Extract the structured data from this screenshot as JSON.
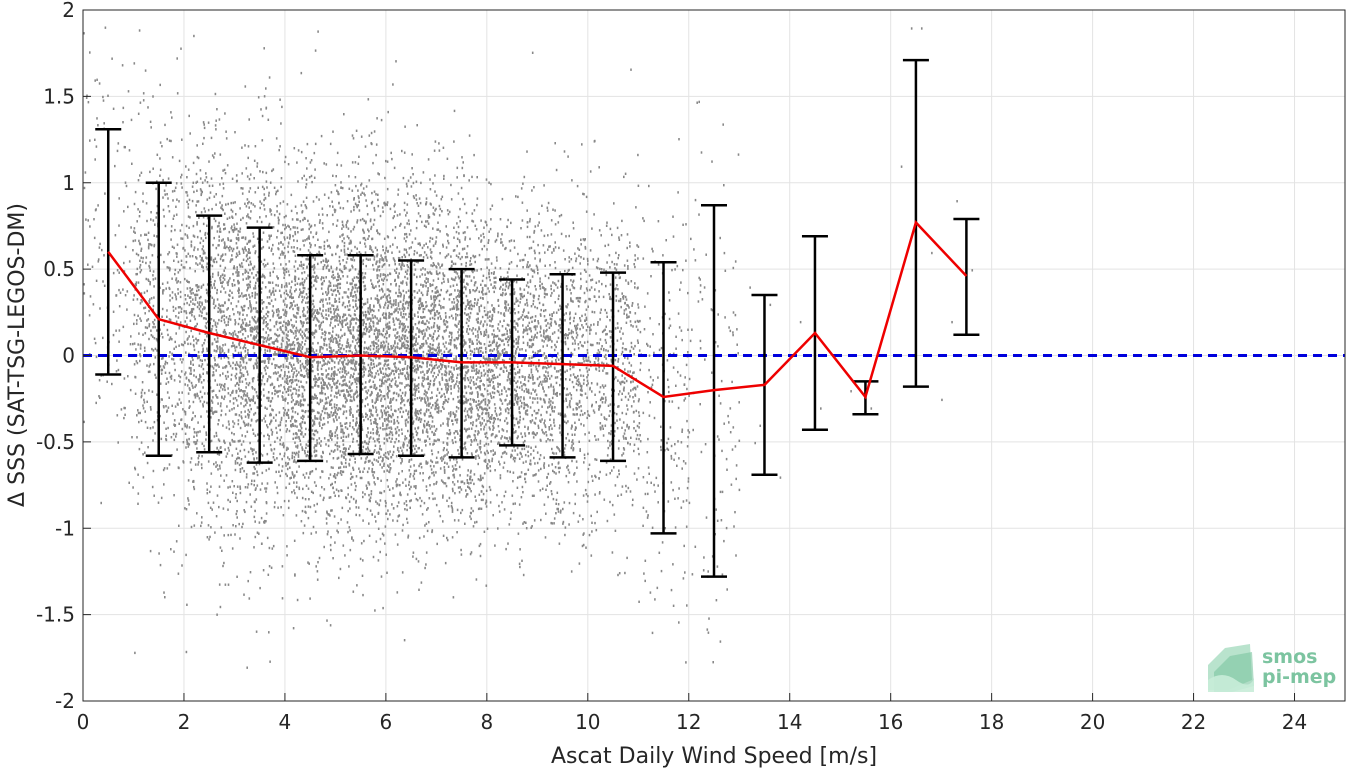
{
  "chart_data": {
    "type": "scatter",
    "xlabel": "Ascat Daily Wind Speed [m/s]",
    "ylabel": "Δ SSS (SAT-TSG-LEGOS-DM)",
    "xlim": [
      0,
      25
    ],
    "ylim": [
      -2,
      2
    ],
    "xticks": [
      0,
      2,
      4,
      6,
      8,
      10,
      12,
      14,
      16,
      18,
      20,
      22,
      24
    ],
    "yticks": [
      -2,
      -1.5,
      -1,
      -0.5,
      0,
      0.5,
      1,
      1.5,
      2
    ],
    "xtick_labels": [
      "0",
      "2",
      "4",
      "6",
      "8",
      "10",
      "12",
      "14",
      "16",
      "18",
      "20",
      "22",
      "24"
    ],
    "ytick_labels": [
      "-2",
      "-1.5",
      "-1",
      "-0.5",
      "0",
      "0.5",
      "1",
      "1.5",
      "2"
    ],
    "grid": true,
    "reference_line": {
      "y": 0,
      "style": "dashed",
      "color": "#0000dd"
    },
    "series": [
      {
        "type": "line_with_errorbars",
        "color": "#ee0000",
        "errorbar_color": "#000000",
        "x": [
          0.5,
          1.5,
          2.5,
          3.5,
          4.5,
          5.5,
          6.5,
          7.5,
          8.5,
          9.5,
          10.5,
          11.5,
          12.5,
          13.5,
          14.5,
          15.5,
          16.5,
          17.5
        ],
        "y": [
          0.6,
          0.21,
          0.13,
          0.06,
          -0.01,
          0.0,
          -0.01,
          -0.04,
          -0.04,
          -0.05,
          -0.06,
          -0.24,
          -0.2,
          -0.17,
          0.13,
          -0.24,
          0.77,
          0.46
        ],
        "upper": [
          1.31,
          1.0,
          0.81,
          0.74,
          0.58,
          0.58,
          0.55,
          0.5,
          0.44,
          0.47,
          0.48,
          0.54,
          0.87,
          0.35,
          0.69,
          -0.15,
          1.71,
          0.79
        ],
        "lower": [
          -0.11,
          -0.58,
          -0.56,
          -0.62,
          -0.61,
          -0.57,
          -0.58,
          -0.59,
          -0.52,
          -0.59,
          -0.61,
          -1.03,
          -1.28,
          -0.69,
          -0.43,
          -0.34,
          -0.18,
          0.12
        ]
      }
    ],
    "scatter_cloud": {
      "color": "#888888",
      "description_bins": [
        {
          "x_range": [
            0,
            1
          ],
          "center": 0.6,
          "spread": 0.6
        },
        {
          "x_range": [
            1,
            2
          ],
          "center": 0.2,
          "spread": 0.55
        },
        {
          "x_range": [
            2,
            3
          ],
          "center": 0.12,
          "spread": 0.55
        },
        {
          "x_range": [
            3,
            4
          ],
          "center": 0.06,
          "spread": 0.55
        },
        {
          "x_range": [
            4,
            5
          ],
          "center": -0.01,
          "spread": 0.5
        },
        {
          "x_range": [
            5,
            6
          ],
          "center": 0.0,
          "spread": 0.5
        },
        {
          "x_range": [
            6,
            7
          ],
          "center": -0.01,
          "spread": 0.48
        },
        {
          "x_range": [
            7,
            8
          ],
          "center": -0.04,
          "spread": 0.46
        },
        {
          "x_range": [
            8,
            9
          ],
          "center": -0.04,
          "spread": 0.42
        },
        {
          "x_range": [
            9,
            10
          ],
          "center": -0.05,
          "spread": 0.45
        },
        {
          "x_range": [
            10,
            11
          ],
          "center": -0.06,
          "spread": 0.45
        },
        {
          "x_range": [
            11,
            12
          ],
          "center": -0.24,
          "spread": 0.6
        },
        {
          "x_range": [
            12,
            13
          ],
          "center": -0.2,
          "spread": 0.7
        }
      ]
    }
  },
  "logo": {
    "line1": "smos",
    "line2": "pi-mep"
  }
}
